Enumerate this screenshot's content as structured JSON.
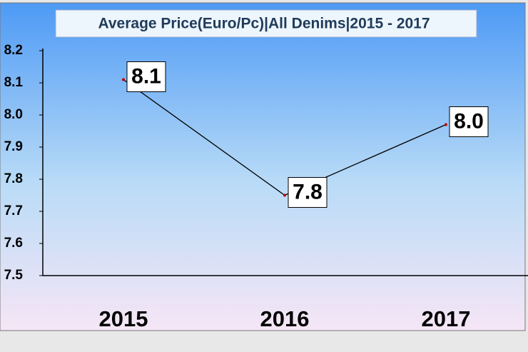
{
  "chart_data": {
    "type": "line",
    "title": "Average Price(Euro/Pc)|All Denims|2015 - 2017",
    "categories": [
      "2015",
      "2016",
      "2017"
    ],
    "values": [
      8.11,
      7.75,
      7.97
    ],
    "value_labels": [
      "8.1",
      "7.8",
      "8.0"
    ],
    "color": "#000000",
    "ylim": [
      7.5,
      8.2
    ],
    "yticks": [
      7.5,
      7.6,
      7.7,
      7.8,
      7.9,
      {
        "value": 8,
        "label": "8.0"
      },
      8.1,
      8.2
    ]
  }
}
